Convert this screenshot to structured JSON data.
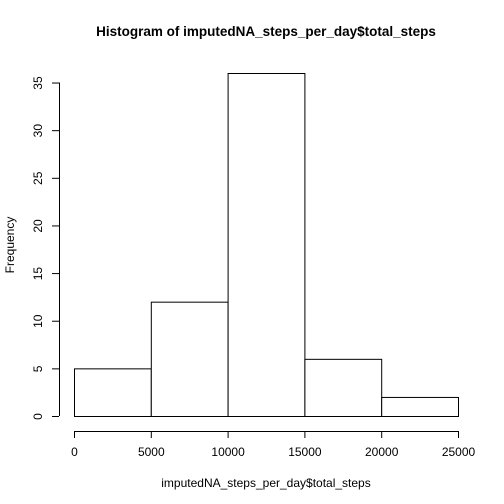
{
  "chart_data": {
    "type": "bar",
    "title": "Histogram of imputedNA_steps_per_day$total_steps",
    "xlabel": "imputedNA_steps_per_day$total_steps",
    "ylabel": "Frequency",
    "bins": [
      {
        "from": 0,
        "to": 5000,
        "count": 5
      },
      {
        "from": 5000,
        "to": 10000,
        "count": 12
      },
      {
        "from": 10000,
        "to": 15000,
        "count": 36
      },
      {
        "from": 15000,
        "to": 20000,
        "count": 6
      },
      {
        "from": 20000,
        "to": 25000,
        "count": 2
      }
    ],
    "xlim": [
      0,
      25000
    ],
    "ylim": [
      0,
      36
    ],
    "x_ticks": [
      0,
      5000,
      10000,
      15000,
      20000,
      25000
    ],
    "y_ticks": [
      0,
      5,
      10,
      15,
      20,
      25,
      30,
      35
    ],
    "grid": false,
    "legend": "none"
  }
}
